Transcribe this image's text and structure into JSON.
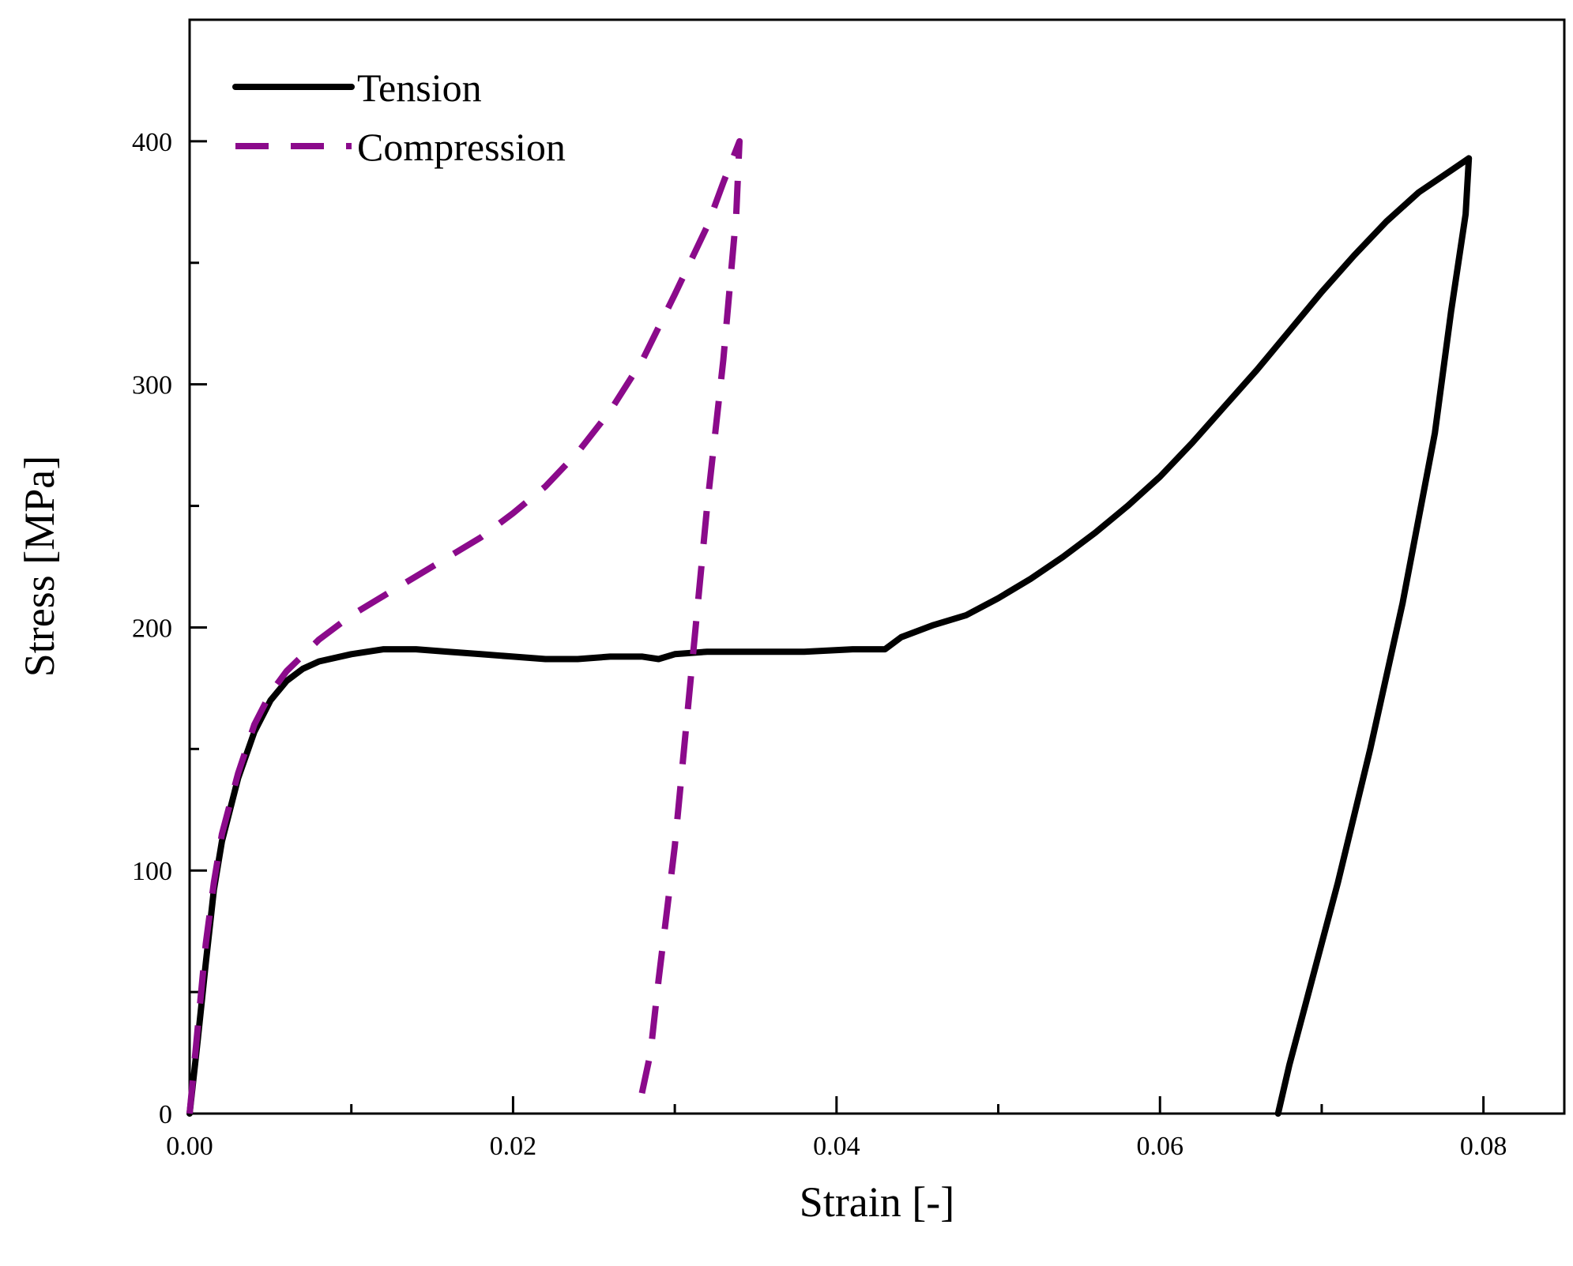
{
  "chart_data": {
    "type": "line",
    "title": "",
    "xlabel": "Strain [-]",
    "ylabel": "Stress [MPa]",
    "xlim": [
      0,
      0.085
    ],
    "ylim": [
      0,
      450
    ],
    "x_ticks": [
      {
        "value": 0.0,
        "label": "0.00"
      },
      {
        "value": 0.02,
        "label": "0.02"
      },
      {
        "value": 0.04,
        "label": "0.04"
      },
      {
        "value": 0.06,
        "label": "0.06"
      },
      {
        "value": 0.08,
        "label": "0.08"
      }
    ],
    "x_minor_ticks": [
      0.01,
      0.03,
      0.05,
      0.07
    ],
    "y_ticks": [
      {
        "value": 0,
        "label": "0"
      },
      {
        "value": 100,
        "label": "100"
      },
      {
        "value": 200,
        "label": "200"
      },
      {
        "value": 300,
        "label": "300"
      },
      {
        "value": 400,
        "label": "400"
      }
    ],
    "y_minor_ticks": [
      50,
      150,
      250,
      350
    ],
    "grid": false,
    "legend_position": "top-left",
    "series": [
      {
        "name": "Tension",
        "color": "#000000",
        "style": "solid",
        "points": [
          [
            0.0,
            0
          ],
          [
            0.0005,
            30
          ],
          [
            0.001,
            62
          ],
          [
            0.0015,
            92
          ],
          [
            0.002,
            112
          ],
          [
            0.003,
            138
          ],
          [
            0.004,
            157
          ],
          [
            0.005,
            170
          ],
          [
            0.006,
            178
          ],
          [
            0.007,
            183
          ],
          [
            0.008,
            186
          ],
          [
            0.01,
            189
          ],
          [
            0.012,
            191
          ],
          [
            0.014,
            191
          ],
          [
            0.016,
            190
          ],
          [
            0.018,
            189
          ],
          [
            0.02,
            188
          ],
          [
            0.022,
            187
          ],
          [
            0.024,
            187
          ],
          [
            0.026,
            188
          ],
          [
            0.028,
            188
          ],
          [
            0.029,
            187
          ],
          [
            0.03,
            189
          ],
          [
            0.032,
            190
          ],
          [
            0.035,
            190
          ],
          [
            0.038,
            190
          ],
          [
            0.041,
            191
          ],
          [
            0.043,
            191
          ],
          [
            0.044,
            196
          ],
          [
            0.046,
            201
          ],
          [
            0.048,
            205
          ],
          [
            0.05,
            212
          ],
          [
            0.052,
            220
          ],
          [
            0.054,
            229
          ],
          [
            0.056,
            239
          ],
          [
            0.058,
            250
          ],
          [
            0.06,
            262
          ],
          [
            0.062,
            276
          ],
          [
            0.064,
            291
          ],
          [
            0.066,
            306
          ],
          [
            0.068,
            322
          ],
          [
            0.07,
            338
          ],
          [
            0.072,
            353
          ],
          [
            0.074,
            367
          ],
          [
            0.076,
            379
          ],
          [
            0.078,
            388
          ],
          [
            0.0791,
            393
          ],
          [
            0.0789,
            370
          ],
          [
            0.078,
            330
          ],
          [
            0.077,
            280
          ],
          [
            0.075,
            210
          ],
          [
            0.073,
            150
          ],
          [
            0.071,
            95
          ],
          [
            0.07,
            70
          ],
          [
            0.069,
            45
          ],
          [
            0.068,
            20
          ],
          [
            0.0673,
            0
          ]
        ]
      },
      {
        "name": "Compression",
        "color": "#8b0a8b",
        "style": "dashed",
        "points": [
          [
            0.0,
            0
          ],
          [
            0.0005,
            35
          ],
          [
            0.001,
            70
          ],
          [
            0.0015,
            95
          ],
          [
            0.002,
            115
          ],
          [
            0.003,
            140
          ],
          [
            0.004,
            160
          ],
          [
            0.005,
            173
          ],
          [
            0.006,
            182
          ],
          [
            0.008,
            195
          ],
          [
            0.01,
            205
          ],
          [
            0.012,
            213
          ],
          [
            0.014,
            221
          ],
          [
            0.016,
            229
          ],
          [
            0.018,
            237
          ],
          [
            0.02,
            247
          ],
          [
            0.022,
            258
          ],
          [
            0.024,
            272
          ],
          [
            0.026,
            289
          ],
          [
            0.028,
            310
          ],
          [
            0.03,
            337
          ],
          [
            0.032,
            365
          ],
          [
            0.033,
            383
          ],
          [
            0.034,
            400
          ],
          [
            0.0338,
            370
          ],
          [
            0.033,
            310
          ],
          [
            0.032,
            250
          ],
          [
            0.031,
            180
          ],
          [
            0.03,
            110
          ],
          [
            0.029,
            55
          ],
          [
            0.0285,
            25
          ],
          [
            0.0277,
            0
          ]
        ]
      }
    ]
  }
}
